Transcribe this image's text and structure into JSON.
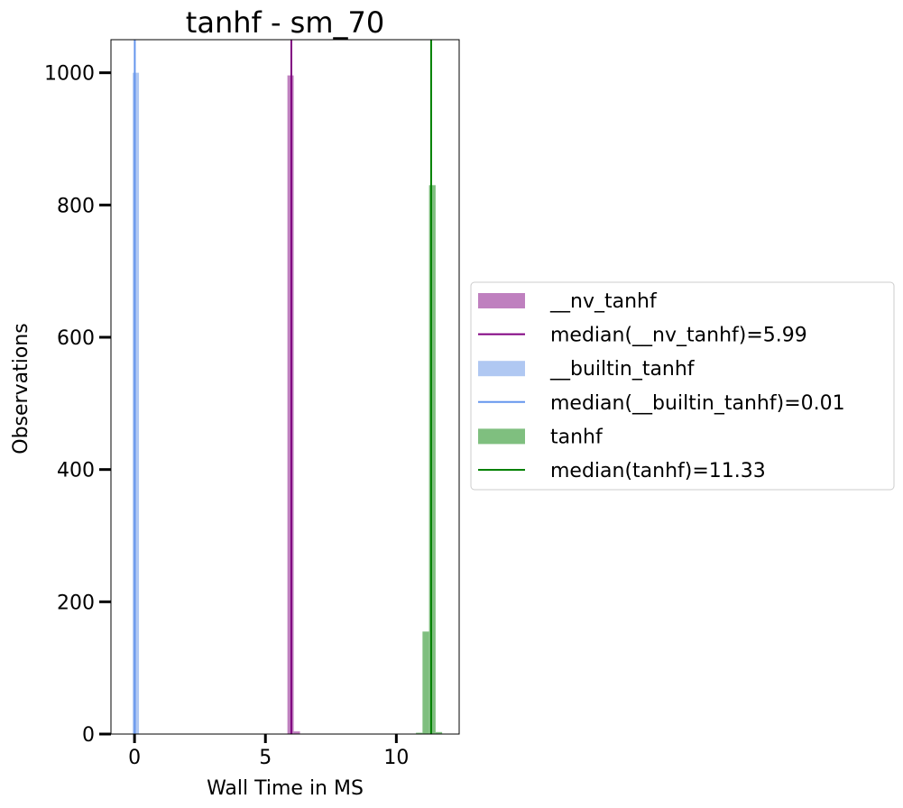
{
  "chart_data": {
    "type": "bar",
    "title": "tanhf - sm_70",
    "xlabel": "Wall Time in MS",
    "ylabel": "Observations",
    "xlim": [
      -0.9,
      12.4
    ],
    "ylim": [
      0,
      1050
    ],
    "xticks": [
      0,
      5,
      10
    ],
    "yticks": [
      0,
      200,
      400,
      600,
      800,
      1000
    ],
    "grid": false,
    "legend_placement": "right, outside plot",
    "series": [
      {
        "name": "__nv_tanhf",
        "color": "#bf80bf",
        "bins": [
          {
            "x0": 5.84,
            "x1": 6.08,
            "count": 996
          },
          {
            "x0": 6.08,
            "x1": 6.32,
            "count": 4
          }
        ]
      },
      {
        "name": "__builtin_tanhf",
        "color": "#b0c8f2",
        "bins": [
          {
            "x0": -0.07,
            "x1": 0.17,
            "count": 1000
          }
        ]
      },
      {
        "name": "tanhf",
        "color": "#7fbf7f",
        "bins": [
          {
            "x0": 10.75,
            "x1": 11.0,
            "count": 2
          },
          {
            "x0": 11.0,
            "x1": 11.25,
            "count": 155
          },
          {
            "x0": 11.25,
            "x1": 11.5,
            "count": 830
          },
          {
            "x0": 11.5,
            "x1": 11.75,
            "count": 3
          }
        ]
      }
    ],
    "medians": [
      {
        "label": "median(__nv_tanhf)=5.99",
        "value": 5.99,
        "color": "#800080"
      },
      {
        "label": "median(__builtin_tanhf)=0.01",
        "value": 0.01,
        "color": "#6495ed"
      },
      {
        "label": "median(tanhf)=11.33",
        "value": 11.33,
        "color": "#008000"
      }
    ],
    "legend": [
      {
        "label": "__nv_tanhf",
        "kind": "patch",
        "color": "#bf80bf"
      },
      {
        "label": "median(__nv_tanhf)=5.99",
        "kind": "line",
        "color": "#800080"
      },
      {
        "label": "__builtin_tanhf",
        "kind": "patch",
        "color": "#b0c8f2"
      },
      {
        "label": "median(__builtin_tanhf)=0.01",
        "kind": "line",
        "color": "#6495ed"
      },
      {
        "label": "tanhf",
        "kind": "patch",
        "color": "#7fbf7f"
      },
      {
        "label": "median(tanhf)=11.33",
        "kind": "line",
        "color": "#008000"
      }
    ]
  }
}
